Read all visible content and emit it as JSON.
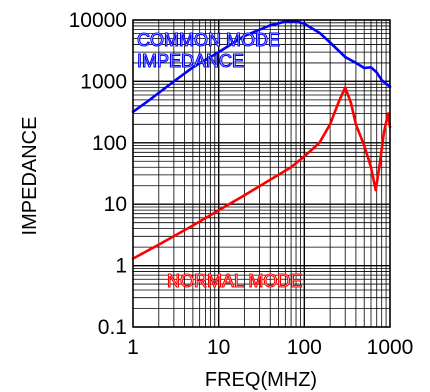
{
  "chart_data": {
    "type": "line",
    "xlabel": "FREQ(MHZ)",
    "ylabel": "IMPEDANCE",
    "xscale": "log",
    "yscale": "log",
    "xlim": [
      1,
      1000
    ],
    "ylim": [
      0.1,
      10000
    ],
    "grid": true,
    "x_ticks": [
      {
        "value": 1,
        "label": "1"
      },
      {
        "value": 10,
        "label": "10"
      },
      {
        "value": 100,
        "label": "100"
      },
      {
        "value": 1000,
        "label": "1000"
      }
    ],
    "y_ticks": [
      {
        "value": 0.1,
        "label": "0.1"
      },
      {
        "value": 1,
        "label": "1"
      },
      {
        "value": 10,
        "label": "10"
      },
      {
        "value": 100,
        "label": "100"
      },
      {
        "value": 1000,
        "label": "1000"
      },
      {
        "value": 10000,
        "label": "10000"
      }
    ],
    "series": [
      {
        "label_lines": [
          "COMMON MODE",
          "IMPEDANCE"
        ],
        "color": "#0000ff",
        "points": [
          [
            1,
            320
          ],
          [
            1.5,
            480
          ],
          [
            2,
            650
          ],
          [
            3,
            1000
          ],
          [
            5,
            1700
          ],
          [
            10,
            3000
          ],
          [
            20,
            5500
          ],
          [
            40,
            8200
          ],
          [
            60,
            9400
          ],
          [
            80,
            9500
          ],
          [
            100,
            8700
          ],
          [
            150,
            6200
          ],
          [
            200,
            4300
          ],
          [
            300,
            2500
          ],
          [
            400,
            2000
          ],
          [
            500,
            1650
          ],
          [
            600,
            1700
          ],
          [
            700,
            1400
          ],
          [
            800,
            1050
          ],
          [
            1000,
            820
          ]
        ]
      },
      {
        "label_lines": [
          "NORMAL MODE"
        ],
        "color": "#ff0000",
        "points": [
          [
            1,
            1.3
          ],
          [
            2,
            2.2
          ],
          [
            5,
            4.5
          ],
          [
            10,
            8
          ],
          [
            20,
            14
          ],
          [
            40,
            25
          ],
          [
            70,
            40
          ],
          [
            100,
            60
          ],
          [
            150,
            100
          ],
          [
            200,
            200
          ],
          [
            250,
            450
          ],
          [
            300,
            800
          ],
          [
            350,
            450
          ],
          [
            400,
            200
          ],
          [
            500,
            90
          ],
          [
            600,
            40
          ],
          [
            680,
            17
          ],
          [
            750,
            40
          ],
          [
            850,
            150
          ],
          [
            950,
            300
          ],
          [
            1000,
            180
          ]
        ]
      }
    ]
  }
}
